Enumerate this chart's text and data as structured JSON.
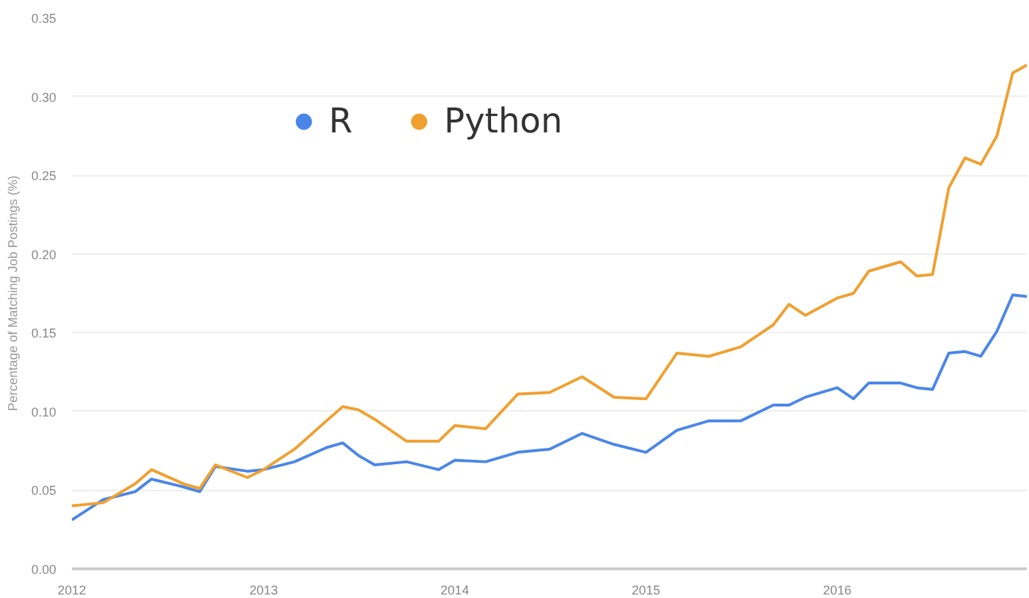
{
  "chart_data": {
    "type": "line",
    "ylabel": "Percentage of Matching Job Postings (%)",
    "x": [
      "2012-01",
      "2012-03",
      "2012-05",
      "2012-06",
      "2012-08",
      "2012-09",
      "2012-10",
      "2012-12",
      "2013-01",
      "2013-03",
      "2013-05",
      "2013-06",
      "2013-07",
      "2013-08",
      "2013-10",
      "2013-12",
      "2014-01",
      "2014-03",
      "2014-05",
      "2014-07",
      "2014-09",
      "2014-11",
      "2015-01",
      "2015-03",
      "2015-05",
      "2015-07",
      "2015-09",
      "2015-10",
      "2015-11",
      "2016-01",
      "2016-02",
      "2016-03",
      "2016-05",
      "2016-06",
      "2016-07",
      "2016-08",
      "2016-09",
      "2016-10",
      "2016-11",
      "2016-12",
      "2016-12-28"
    ],
    "series": [
      {
        "name": "R",
        "color": "#4a86e8",
        "values": [
          0.031,
          0.044,
          0.049,
          0.057,
          0.052,
          0.049,
          0.065,
          0.062,
          0.063,
          0.068,
          0.077,
          0.08,
          0.072,
          0.066,
          0.068,
          0.063,
          0.069,
          0.068,
          0.074,
          0.076,
          0.086,
          0.079,
          0.074,
          0.088,
          0.094,
          0.094,
          0.104,
          0.104,
          0.109,
          0.115,
          0.108,
          0.118,
          0.118,
          0.115,
          0.114,
          0.137,
          0.138,
          0.135,
          0.151,
          0.174,
          0.173
        ]
      },
      {
        "name": "Python",
        "color": "#f0a030",
        "values": [
          0.04,
          0.042,
          0.054,
          0.063,
          0.054,
          0.051,
          0.066,
          0.058,
          0.063,
          0.076,
          0.094,
          0.103,
          0.101,
          0.095,
          0.081,
          0.081,
          0.091,
          0.089,
          0.111,
          0.112,
          0.122,
          0.109,
          0.108,
          0.137,
          0.135,
          0.141,
          0.155,
          0.168,
          0.161,
          0.172,
          0.175,
          0.189,
          0.195,
          0.186,
          0.187,
          0.242,
          0.261,
          0.257,
          0.275,
          0.315,
          0.32
        ]
      }
    ],
    "xlim": [
      "2012-01",
      "2016-12-28"
    ],
    "xticks": [
      "2012",
      "2013",
      "2014",
      "2015",
      "2016"
    ],
    "ylim": [
      0,
      0.35
    ],
    "yticks": [
      {
        "value": 0,
        "label": "0.00"
      },
      {
        "value": 0.05,
        "label": "0.05"
      },
      {
        "value": 0.1,
        "label": "0.10"
      },
      {
        "value": 0.15,
        "label": "0.15"
      },
      {
        "value": 0.2,
        "label": "0.20"
      },
      {
        "value": 0.25,
        "label": "0.25"
      },
      {
        "value": 0.3,
        "label": "0.30"
      },
      {
        "value": 0.35,
        "label": "0.35"
      }
    ],
    "grid": "y",
    "legend": "top",
    "marker": "none",
    "line_style": "solid"
  }
}
